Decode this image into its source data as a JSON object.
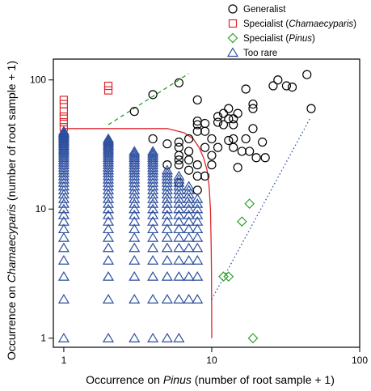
{
  "chart_data": {
    "type": "scatter",
    "title": "",
    "xlabel": {
      "prefix": "Occurrence on ",
      "italic": "Pinus",
      "suffix": " (number of root sample + 1)"
    },
    "ylabel": {
      "prefix": "Occurrence on ",
      "italic": "Chamaecyparis",
      "suffix": " (number of root sample + 1)"
    },
    "x_scale": "log",
    "y_scale": "log",
    "xlim": [
      0.85,
      100
    ],
    "ylim": [
      0.85,
      145
    ],
    "x_ticks": [
      1,
      10,
      100
    ],
    "x_tick_labels": [
      "1",
      "10",
      "100"
    ],
    "y_ticks": [
      1,
      10,
      100
    ],
    "y_tick_labels": [
      "1",
      "10",
      "100"
    ],
    "grid": false,
    "legend_position": "top-right, outside plot",
    "legend": [
      {
        "parts": [
          [
            "Generalist",
            false
          ]
        ],
        "marker": "circle",
        "color": "#000000"
      },
      {
        "parts": [
          [
            "Specialist (",
            false
          ],
          [
            "Chamaecyparis",
            true
          ],
          [
            ")",
            false
          ]
        ],
        "marker": "square",
        "color": "#e0262b"
      },
      {
        "parts": [
          [
            "Specialist (",
            false
          ],
          [
            "Pinus",
            true
          ],
          [
            ")",
            false
          ]
        ],
        "marker": "diamond",
        "color": "#2ca02c"
      },
      {
        "parts": [
          [
            "Too rare",
            false
          ]
        ],
        "marker": "triangle",
        "color": "#2c4e9e"
      }
    ],
    "series": [
      {
        "name": "Generalist",
        "marker": "circle",
        "color": "#000000",
        "points": [
          [
            3,
            57
          ],
          [
            4,
            77
          ],
          [
            6,
            95
          ],
          [
            8,
            70
          ],
          [
            17,
            85
          ],
          [
            19,
            65
          ],
          [
            19,
            60
          ],
          [
            26,
            90
          ],
          [
            28,
            100
          ],
          [
            32,
            90
          ],
          [
            35,
            88
          ],
          [
            44,
            110
          ],
          [
            47,
            60
          ],
          [
            4,
            35
          ],
          [
            5,
            32
          ],
          [
            5,
            22
          ],
          [
            6,
            33
          ],
          [
            6,
            30
          ],
          [
            6,
            26
          ],
          [
            6,
            24
          ],
          [
            6,
            22
          ],
          [
            6,
            16
          ],
          [
            7,
            35
          ],
          [
            7,
            28
          ],
          [
            7,
            24
          ],
          [
            7,
            20
          ],
          [
            8,
            48
          ],
          [
            8,
            45
          ],
          [
            8,
            40
          ],
          [
            8,
            22
          ],
          [
            8,
            18
          ],
          [
            8,
            14
          ],
          [
            9,
            46
          ],
          [
            9,
            40
          ],
          [
            9,
            30
          ],
          [
            9,
            18
          ],
          [
            10,
            35
          ],
          [
            10,
            26
          ],
          [
            10,
            22
          ],
          [
            11,
            52
          ],
          [
            11,
            47
          ],
          [
            11,
            30
          ],
          [
            12,
            55
          ],
          [
            12,
            45
          ],
          [
            13,
            60
          ],
          [
            13,
            50
          ],
          [
            13,
            34
          ],
          [
            14,
            50
          ],
          [
            14,
            45
          ],
          [
            14,
            35
          ],
          [
            14,
            30
          ],
          [
            15,
            55
          ],
          [
            15,
            21
          ],
          [
            16,
            28
          ],
          [
            17,
            35
          ],
          [
            18,
            28
          ],
          [
            19,
            42
          ],
          [
            20,
            25
          ],
          [
            22,
            33
          ],
          [
            23,
            25
          ]
        ]
      },
      {
        "name": "Specialist (Chamaecyparis)",
        "marker": "square",
        "color": "#e0262b",
        "points": [
          [
            1,
            70
          ],
          [
            1,
            65
          ],
          [
            1,
            57
          ],
          [
            1,
            52
          ],
          [
            1,
            47
          ],
          [
            1,
            43
          ],
          [
            2,
            90
          ],
          [
            2,
            83
          ]
        ]
      },
      {
        "name": "Specialist (Pinus)",
        "marker": "diamond",
        "color": "#2ca02c",
        "points": [
          [
            12,
            3
          ],
          [
            13,
            3
          ],
          [
            16,
            8
          ],
          [
            18,
            11
          ],
          [
            19,
            1
          ]
        ]
      },
      {
        "name": "Too rare",
        "marker": "triangle",
        "color": "#2c4e9e",
        "columns": [
          {
            "x": 1,
            "y": [
              1,
              2,
              3,
              4,
              5,
              6,
              7,
              8,
              9,
              10,
              11,
              12,
              13,
              14,
              15,
              16,
              17,
              18,
              19,
              20,
              21,
              22,
              23,
              24,
              25,
              26,
              27,
              28,
              29,
              30,
              31,
              32,
              33,
              34,
              35,
              36,
              37,
              38,
              39,
              40
            ]
          },
          {
            "x": 2,
            "y": [
              1,
              2,
              3,
              4,
              5,
              6,
              7,
              8,
              9,
              10,
              11,
              12,
              13,
              14,
              15,
              16,
              17,
              18,
              19,
              20,
              21,
              22,
              23,
              24,
              25,
              26,
              27,
              28,
              29,
              30,
              31,
              32,
              33,
              34,
              35
            ]
          },
          {
            "x": 3,
            "y": [
              1,
              2,
              3,
              4,
              5,
              6,
              7,
              8,
              9,
              10,
              11,
              12,
              13,
              14,
              15,
              16,
              17,
              18,
              19,
              20,
              21,
              22,
              23,
              24,
              25,
              26,
              27,
              28
            ]
          },
          {
            "x": 4,
            "y": [
              1,
              2,
              3,
              4,
              5,
              6,
              7,
              8,
              9,
              10,
              11,
              12,
              13,
              14,
              15,
              16,
              17,
              18,
              19,
              20,
              21,
              22,
              23,
              24,
              25,
              26,
              27,
              28
            ]
          },
          {
            "x": 5,
            "y": [
              1,
              2,
              3,
              4,
              5,
              6,
              7,
              8,
              9,
              10,
              11,
              12,
              13,
              14,
              15,
              16,
              17,
              18,
              19,
              20
            ]
          },
          {
            "x": 6,
            "y": [
              1,
              2,
              3,
              4,
              5,
              6,
              7,
              8,
              9,
              10,
              11,
              12,
              13,
              14,
              15,
              16,
              17,
              18
            ]
          },
          {
            "x": 7,
            "y": [
              2,
              3,
              4,
              5,
              6,
              7,
              8,
              9,
              10,
              11,
              12,
              13,
              14,
              15
            ]
          },
          {
            "x": 8,
            "y": [
              2,
              3,
              4,
              5,
              6,
              7,
              8,
              9,
              10,
              11,
              12
            ]
          }
        ]
      }
    ],
    "lines": [
      {
        "kind": "curve",
        "style": "solid",
        "color": "#e0262b",
        "points": [
          [
            1,
            42
          ],
          [
            5,
            42
          ],
          [
            6.5,
            39
          ],
          [
            7.5,
            35
          ],
          [
            8.2,
            30
          ],
          [
            8.8,
            25
          ],
          [
            9.3,
            20
          ],
          [
            9.6,
            15
          ],
          [
            9.8,
            10
          ],
          [
            9.92,
            5
          ],
          [
            9.97,
            3
          ],
          [
            10,
            1
          ]
        ]
      },
      {
        "kind": "segment",
        "style": "dashed",
        "color": "#2ca02c",
        "points": [
          [
            2,
            45
          ],
          [
            7,
            112
          ]
        ]
      },
      {
        "kind": "segment",
        "style": "dotted",
        "color": "#2c4e9e",
        "points": [
          [
            10,
            2
          ],
          [
            46,
            50
          ]
        ]
      }
    ]
  }
}
